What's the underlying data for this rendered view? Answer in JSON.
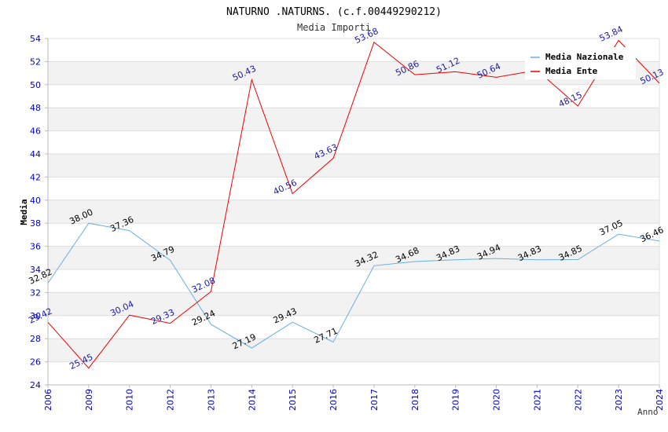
{
  "chart_data": {
    "type": "line",
    "title": "NATURNO .NATURNS. (c.f.00449290212)",
    "subtitle": "Media Importi",
    "xlabel": "Anno",
    "ylabel": "Media",
    "ylim": [
      24,
      54
    ],
    "ytick_step": 2,
    "grid": true,
    "legend_position": "top-right",
    "categories": [
      "2006",
      "2009",
      "2010",
      "2012",
      "2013",
      "2014",
      "2015",
      "2016",
      "2017",
      "2018",
      "2019",
      "2020",
      "2021",
      "2022",
      "2023",
      "2024"
    ],
    "series": [
      {
        "name": "Media Nazionale",
        "color": "#6aaee0",
        "label_color": "#000000",
        "values": [
          32.82,
          38.0,
          37.36,
          34.79,
          29.24,
          27.19,
          29.43,
          27.71,
          34.32,
          34.68,
          34.83,
          34.94,
          34.83,
          34.85,
          37.05,
          36.46
        ],
        "labels": [
          "32.82",
          "38.00",
          "37.36",
          "34.79",
          "29.24",
          "27.19",
          "29.43",
          "27.71",
          "34.32",
          "34.68",
          "34.83",
          "34.94",
          "34.83",
          "34.85",
          "37.05",
          "36.46"
        ]
      },
      {
        "name": "Media Ente",
        "color": "#ee0000",
        "label_color": "#1a1aa0",
        "values": [
          29.42,
          25.45,
          30.04,
          29.33,
          32.08,
          50.43,
          40.56,
          43.63,
          53.68,
          50.86,
          51.12,
          50.64,
          51.25,
          48.15,
          53.84,
          50.13
        ],
        "labels": [
          "29.42",
          "25.45",
          "30.04",
          "29.33",
          "32.08",
          "50.43",
          "40.56",
          "43.63",
          "53.68",
          "50.86",
          "51.12",
          "50.64",
          "",
          "48.15",
          "53.84",
          "50.13"
        ]
      }
    ]
  }
}
